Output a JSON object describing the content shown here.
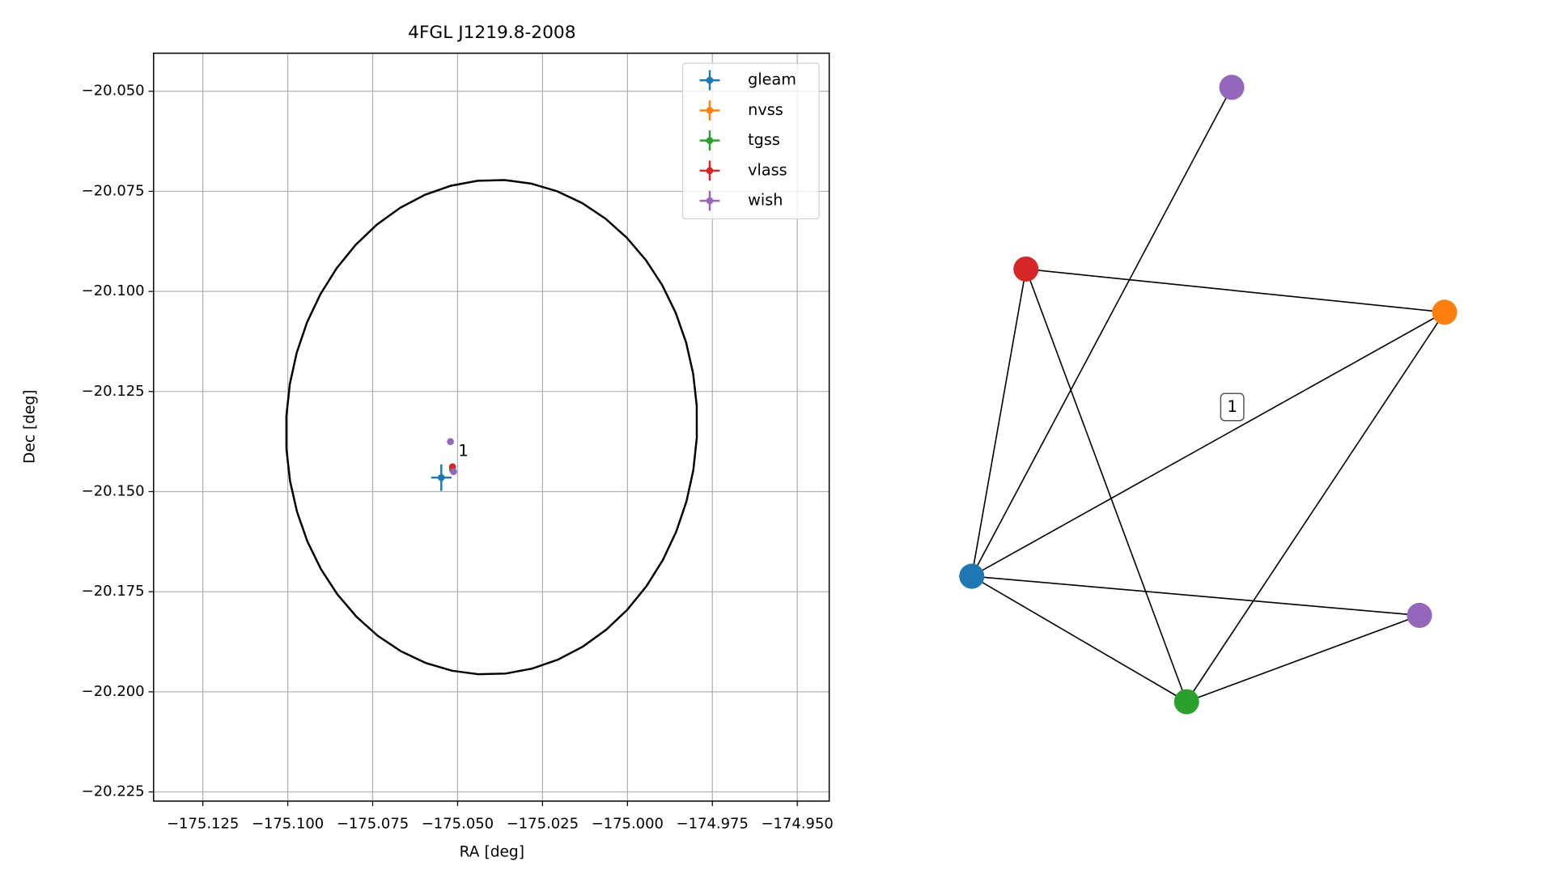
{
  "chart_data": [
    {
      "type": "errorbar",
      "title": "4FGL J1219.8-2008",
      "xlabel": "RA [deg]",
      "ylabel": "Dec [deg]",
      "xlim": [
        -175.1395,
        -174.9406
      ],
      "ylim": [
        -20.2273,
        -20.0405
      ],
      "xticks": [
        {
          "value": -175.125,
          "label": "−175.125"
        },
        {
          "value": -175.1,
          "label": "−175.100"
        },
        {
          "value": -175.075,
          "label": "−175.075"
        },
        {
          "value": -175.05,
          "label": "−175.050"
        },
        {
          "value": -175.025,
          "label": "−175.025"
        },
        {
          "value": -175.0,
          "label": "−175.000"
        },
        {
          "value": -174.975,
          "label": "−174.975"
        },
        {
          "value": -174.95,
          "label": "−174.950"
        }
      ],
      "yticks": [
        {
          "value": -20.05,
          "label": "−20.050"
        },
        {
          "value": -20.075,
          "label": "−20.075"
        },
        {
          "value": -20.1,
          "label": "−20.100"
        },
        {
          "value": -20.125,
          "label": "−20.125"
        },
        {
          "value": -20.15,
          "label": "−20.150"
        },
        {
          "value": -20.175,
          "label": "−20.175"
        },
        {
          "value": -20.2,
          "label": "−20.200"
        },
        {
          "value": -20.225,
          "label": "−20.225"
        }
      ],
      "grid": true,
      "legend": "upper right",
      "ellipse": {
        "center_x": -175.04,
        "center_y": -20.1339,
        "width": 0.121,
        "height": 0.1236,
        "angle": -3,
        "color": "#000000"
      },
      "series": [
        {
          "name": "gleam",
          "color": "#1f77b4",
          "x": [
            -175.0548
          ],
          "values": [
            -20.1465
          ],
          "xerr": [
            0.003
          ],
          "yerr": [
            0.0033
          ]
        },
        {
          "name": "nvss",
          "color": "#ff7f0e",
          "x": [
            -175.0515
          ],
          "values": [
            -20.1445
          ],
          "xerr": [
            0.0003
          ],
          "yerr": [
            0.0003
          ]
        },
        {
          "name": "tgss",
          "color": "#2ca02c",
          "x": [
            -175.0515
          ],
          "values": [
            -20.1445
          ],
          "xerr": [
            0.0003
          ],
          "yerr": [
            0.0003
          ]
        },
        {
          "name": "vlass",
          "color": "#d62728",
          "x": [
            -175.0515
          ],
          "values": [
            -20.1438
          ],
          "xerr": [
            0.0002
          ],
          "yerr": [
            0.0002
          ]
        },
        {
          "name": "wish",
          "color": "#9467bd",
          "x": [
            -175.0521,
            -175.0512
          ],
          "values": [
            -20.1375,
            -20.145
          ],
          "xerr": [
            0.0003,
            0.0003
          ],
          "yerr": [
            0.0003,
            0.0003
          ]
        }
      ],
      "annotations": [
        {
          "text": "1",
          "x": -175.0483,
          "y": -20.14
        }
      ]
    },
    {
      "type": "network",
      "label": "1",
      "nodes": [
        {
          "color": "#1f77b4"
        },
        {
          "color": "#ff7f0e"
        },
        {
          "color": "#2ca02c"
        },
        {
          "color": "#d62728"
        },
        {
          "color": "#9467bd"
        },
        {
          "color": "#9467bd"
        }
      ],
      "edges": [
        [
          3,
          1
        ],
        [
          3,
          0
        ],
        [
          3,
          2
        ],
        [
          0,
          4
        ],
        [
          0,
          1
        ],
        [
          0,
          5
        ],
        [
          0,
          2
        ],
        [
          2,
          1
        ],
        [
          2,
          5
        ]
      ]
    }
  ]
}
